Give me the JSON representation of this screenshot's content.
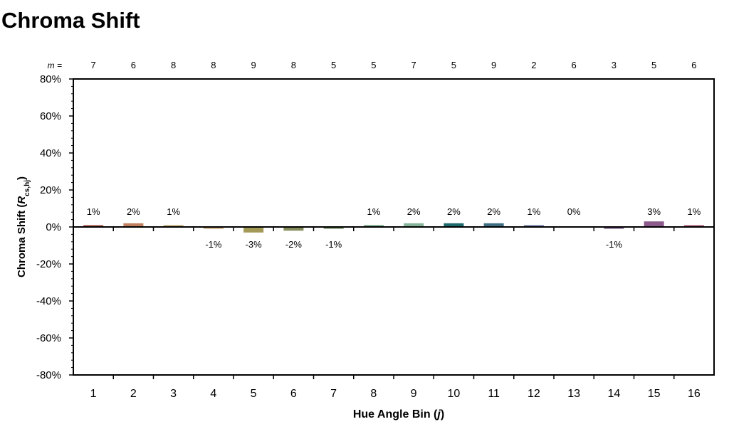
{
  "title": "Chroma Shift",
  "chart_data": {
    "type": "bar",
    "title": "Chroma Shift",
    "xlabel_main": "Hue Angle Bin (",
    "xlabel_var": "j",
    "xlabel_end": ")",
    "ylabel_main": "Chroma Shift (",
    "ylabel_var": "R",
    "ylabel_sub": "cs,hj",
    "ylabel_end": ")",
    "m_prefix": "m =",
    "categories": [
      "1",
      "2",
      "3",
      "4",
      "5",
      "6",
      "7",
      "8",
      "9",
      "10",
      "11",
      "12",
      "13",
      "14",
      "15",
      "16"
    ],
    "values": [
      0.01,
      0.02,
      0.01,
      -0.01,
      -0.03,
      -0.02,
      -0.01,
      0.01,
      0.02,
      0.02,
      0.02,
      0.01,
      0.0,
      -0.01,
      0.03,
      0.01
    ],
    "value_labels": [
      "1%",
      "2%",
      "1%",
      "-1%",
      "-3%",
      "-2%",
      "-1%",
      "1%",
      "2%",
      "2%",
      "2%",
      "1%",
      "0%",
      "-1%",
      "3%",
      "1%"
    ],
    "m_values": [
      "7",
      "6",
      "8",
      "8",
      "9",
      "8",
      "5",
      "5",
      "7",
      "5",
      "9",
      "2",
      "6",
      "3",
      "5",
      "6"
    ],
    "bar_colors": [
      "#a35248",
      "#c08060",
      "#b9a26c",
      "#c5a373",
      "#a39a58",
      "#868c5c",
      "#708862",
      "#6d9d79",
      "#86b49b",
      "#1c6a6b",
      "#3f6e82",
      "#6b7aa0",
      "#766c97",
      "#7b5f89",
      "#8c5b8b",
      "#a65d78"
    ],
    "ylim": [
      -0.8,
      0.8
    ],
    "y_ticks": [
      -0.8,
      -0.6,
      -0.4,
      -0.2,
      0,
      0.2,
      0.4,
      0.6,
      0.8
    ],
    "y_tick_labels": [
      "-80%",
      "-60%",
      "-40%",
      "-20%",
      "0%",
      "20%",
      "40%",
      "60%",
      "80%"
    ],
    "grid": false
  }
}
